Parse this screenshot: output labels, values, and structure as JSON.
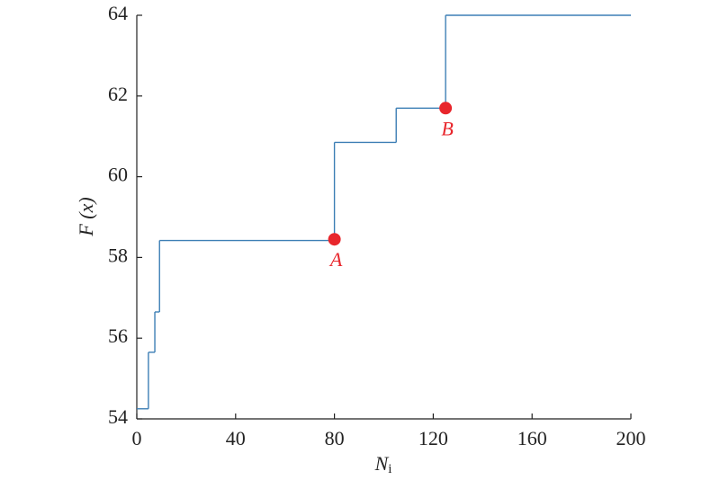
{
  "chart_data": {
    "type": "step",
    "x_label": "N",
    "x_label_sub": "i",
    "y_label": "F (x)",
    "xlim": [
      0,
      200
    ],
    "xticks": [
      0,
      40,
      80,
      120,
      160,
      200
    ],
    "ylim": [
      54,
      64
    ],
    "yticks": [
      54,
      56,
      58,
      60,
      62,
      64
    ],
    "series": [
      {
        "color": "#3d7fb5",
        "x": [
          0,
          4.7,
          7.3,
          9.2,
          80,
          105,
          125,
          200
        ],
        "values": [
          54.25,
          55.65,
          56.65,
          58.42,
          60.85,
          61.7,
          64,
          64
        ]
      }
    ],
    "points": {
      "color": "#e8262c",
      "x": [
        80,
        125
      ],
      "values": [
        58.45,
        61.7
      ],
      "labels": [
        "A",
        "B"
      ]
    }
  }
}
